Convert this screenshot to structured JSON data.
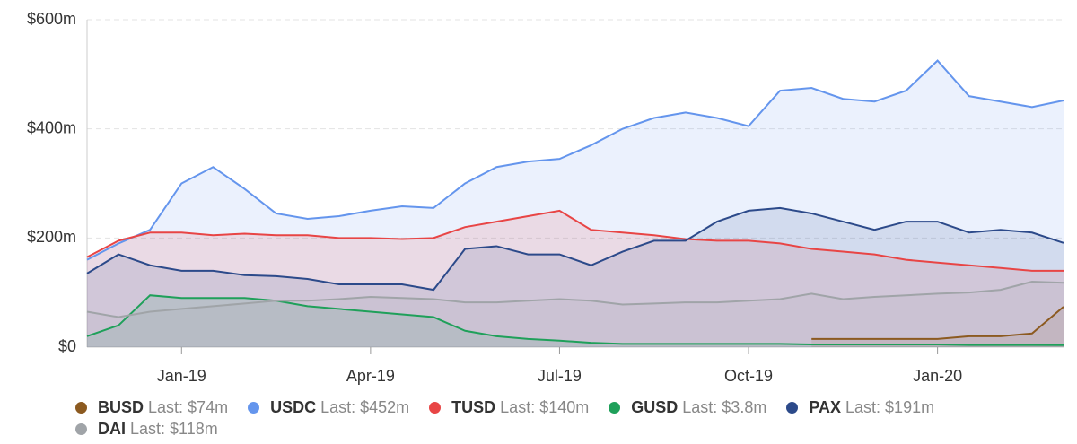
{
  "chart_data": {
    "type": "line",
    "x": [
      -1.5,
      -1,
      -0.5,
      0,
      0.5,
      1,
      1.5,
      2,
      2.5,
      3,
      3.5,
      4,
      4.5,
      5,
      5.5,
      6,
      6.5,
      7,
      7.5,
      8,
      8.5,
      9,
      9.5,
      10,
      10.5,
      11,
      11.5,
      12,
      12.5,
      13,
      13.5,
      14
    ],
    "xlim": [
      -1.5,
      14
    ],
    "xticks": [
      {
        "value": 0,
        "label": "Jan-19"
      },
      {
        "value": 3,
        "label": "Apr-19"
      },
      {
        "value": 6,
        "label": "Jul-19"
      },
      {
        "value": 9,
        "label": "Oct-19"
      },
      {
        "value": 12,
        "label": "Jan-20"
      }
    ],
    "ylim": [
      0,
      600
    ],
    "yticks": [
      {
        "value": 0,
        "label": "$0"
      },
      {
        "value": 200,
        "label": "$200m"
      },
      {
        "value": 400,
        "label": "$400m"
      },
      {
        "value": 600,
        "label": "$600m"
      }
    ],
    "grid": true,
    "legend_last_prefix": "Last:",
    "series": [
      {
        "name": "BUSD",
        "color": "#8c5a20",
        "last_label": "$74m",
        "values": [
          null,
          null,
          null,
          null,
          null,
          null,
          null,
          null,
          null,
          null,
          null,
          null,
          null,
          null,
          null,
          null,
          null,
          null,
          null,
          null,
          null,
          null,
          null,
          15,
          15,
          15,
          15,
          15,
          20,
          20,
          25,
          74
        ]
      },
      {
        "name": "USDC",
        "color": "#6495ed",
        "last_label": "$452m",
        "values": [
          160,
          190,
          215,
          300,
          330,
          290,
          245,
          235,
          240,
          250,
          258,
          255,
          300,
          330,
          340,
          345,
          370,
          400,
          420,
          430,
          420,
          405,
          470,
          475,
          455,
          450,
          470,
          525,
          460,
          450,
          440,
          452
        ]
      },
      {
        "name": "TUSD",
        "color": "#e84545",
        "last_label": "$140m",
        "values": [
          165,
          195,
          210,
          210,
          205,
          208,
          205,
          205,
          200,
          200,
          198,
          200,
          220,
          230,
          240,
          250,
          215,
          210,
          205,
          198,
          195,
          195,
          190,
          180,
          175,
          170,
          160,
          155,
          150,
          145,
          140,
          140
        ]
      },
      {
        "name": "GUSD",
        "color": "#1fa05a",
        "last_label": "$3.8m",
        "values": [
          20,
          40,
          95,
          90,
          90,
          90,
          85,
          75,
          70,
          65,
          60,
          55,
          30,
          20,
          15,
          12,
          8,
          6,
          6,
          6,
          6,
          6,
          6,
          5,
          5,
          5,
          5,
          5,
          4,
          4,
          4,
          3.8
        ]
      },
      {
        "name": "PAX",
        "color": "#2c4a8a",
        "last_label": "$191m",
        "values": [
          135,
          170,
          150,
          140,
          140,
          132,
          130,
          125,
          115,
          115,
          115,
          105,
          180,
          185,
          170,
          170,
          150,
          175,
          195,
          195,
          230,
          250,
          255,
          245,
          230,
          215,
          230,
          230,
          210,
          215,
          210,
          191
        ]
      },
      {
        "name": "DAI",
        "color": "#a0a4a8",
        "last_label": "$118m",
        "values": [
          65,
          55,
          65,
          70,
          75,
          80,
          85,
          85,
          88,
          92,
          90,
          88,
          82,
          82,
          85,
          88,
          85,
          78,
          80,
          82,
          82,
          85,
          88,
          98,
          88,
          92,
          95,
          98,
          100,
          105,
          120,
          118
        ]
      }
    ]
  }
}
